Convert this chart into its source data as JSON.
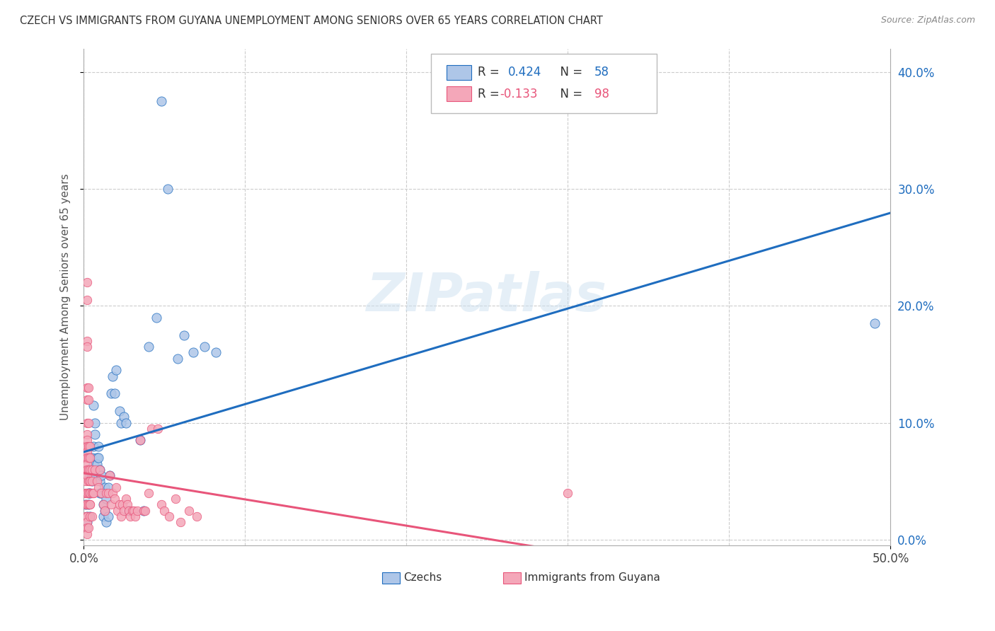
{
  "title": "CZECH VS IMMIGRANTS FROM GUYANA UNEMPLOYMENT AMONG SENIORS OVER 65 YEARS CORRELATION CHART",
  "source": "Source: ZipAtlas.com",
  "ylabel": "Unemployment Among Seniors over 65 years",
  "xlim": [
    0.0,
    0.5
  ],
  "ylim": [
    -0.005,
    0.42
  ],
  "xticks": [
    0.0,
    0.5
  ],
  "xtick_labels": [
    "0.0%",
    "50.0%"
  ],
  "yticks": [
    0.0,
    0.1,
    0.2,
    0.3,
    0.4
  ],
  "ytick_labels_right": [
    "0.0%",
    "10.0%",
    "20.0%",
    "30.0%",
    "40.0%"
  ],
  "grid_xticks": [
    0.0,
    0.1,
    0.2,
    0.3,
    0.4,
    0.5
  ],
  "watermark": "ZIPatlas",
  "czech_color": "#aec6e8",
  "guyana_color": "#f4a7b9",
  "czech_line_color": "#1f6dbf",
  "guyana_line_color": "#e8557a",
  "R_czech": 0.424,
  "N_czech": 58,
  "R_guyana": -0.133,
  "N_guyana": 98,
  "czech_points": [
    [
      0.001,
      0.03
    ],
    [
      0.002,
      0.02
    ],
    [
      0.002,
      0.015
    ],
    [
      0.003,
      0.04
    ],
    [
      0.003,
      0.06
    ],
    [
      0.003,
      0.03
    ],
    [
      0.004,
      0.02
    ],
    [
      0.004,
      0.055
    ],
    [
      0.004,
      0.04
    ],
    [
      0.004,
      0.07
    ],
    [
      0.005,
      0.05
    ],
    [
      0.005,
      0.06
    ],
    [
      0.005,
      0.055
    ],
    [
      0.005,
      0.07
    ],
    [
      0.006,
      0.065
    ],
    [
      0.006,
      0.08
    ],
    [
      0.006,
      0.115
    ],
    [
      0.007,
      0.1
    ],
    [
      0.007,
      0.09
    ],
    [
      0.008,
      0.07
    ],
    [
      0.008,
      0.065
    ],
    [
      0.009,
      0.07
    ],
    [
      0.009,
      0.08
    ],
    [
      0.01,
      0.06
    ],
    [
      0.01,
      0.05
    ],
    [
      0.01,
      0.04
    ],
    [
      0.011,
      0.055
    ],
    [
      0.011,
      0.04
    ],
    [
      0.012,
      0.02
    ],
    [
      0.012,
      0.03
    ],
    [
      0.013,
      0.045
    ],
    [
      0.013,
      0.025
    ],
    [
      0.014,
      0.035
    ],
    [
      0.014,
      0.015
    ],
    [
      0.015,
      0.02
    ],
    [
      0.015,
      0.045
    ],
    [
      0.016,
      0.055
    ],
    [
      0.017,
      0.125
    ],
    [
      0.018,
      0.14
    ],
    [
      0.019,
      0.125
    ],
    [
      0.02,
      0.145
    ],
    [
      0.022,
      0.11
    ],
    [
      0.023,
      0.1
    ],
    [
      0.025,
      0.105
    ],
    [
      0.026,
      0.1
    ],
    [
      0.028,
      0.025
    ],
    [
      0.035,
      0.085
    ],
    [
      0.037,
      0.025
    ],
    [
      0.04,
      0.165
    ],
    [
      0.045,
      0.19
    ],
    [
      0.048,
      0.375
    ],
    [
      0.052,
      0.3
    ],
    [
      0.058,
      0.155
    ],
    [
      0.062,
      0.175
    ],
    [
      0.068,
      0.16
    ],
    [
      0.075,
      0.165
    ],
    [
      0.082,
      0.16
    ],
    [
      0.49,
      0.185
    ]
  ],
  "guyana_points": [
    [
      0.001,
      0.06
    ],
    [
      0.001,
      0.04
    ],
    [
      0.001,
      0.02
    ],
    [
      0.001,
      0.07
    ],
    [
      0.001,
      0.06
    ],
    [
      0.001,
      0.05
    ],
    [
      0.001,
      0.04
    ],
    [
      0.001,
      0.03
    ],
    [
      0.001,
      0.08
    ],
    [
      0.002,
      0.22
    ],
    [
      0.002,
      0.205
    ],
    [
      0.002,
      0.17
    ],
    [
      0.002,
      0.165
    ],
    [
      0.002,
      0.13
    ],
    [
      0.002,
      0.12
    ],
    [
      0.002,
      0.1
    ],
    [
      0.002,
      0.09
    ],
    [
      0.002,
      0.085
    ],
    [
      0.002,
      0.08
    ],
    [
      0.002,
      0.075
    ],
    [
      0.002,
      0.07
    ],
    [
      0.002,
      0.065
    ],
    [
      0.002,
      0.06
    ],
    [
      0.002,
      0.055
    ],
    [
      0.002,
      0.04
    ],
    [
      0.002,
      0.03
    ],
    [
      0.002,
      0.02
    ],
    [
      0.002,
      0.015
    ],
    [
      0.002,
      0.01
    ],
    [
      0.002,
      0.005
    ],
    [
      0.003,
      0.13
    ],
    [
      0.003,
      0.12
    ],
    [
      0.003,
      0.1
    ],
    [
      0.003,
      0.08
    ],
    [
      0.003,
      0.07
    ],
    [
      0.003,
      0.06
    ],
    [
      0.003,
      0.05
    ],
    [
      0.003,
      0.04
    ],
    [
      0.003,
      0.03
    ],
    [
      0.003,
      0.01
    ],
    [
      0.004,
      0.08
    ],
    [
      0.004,
      0.06
    ],
    [
      0.004,
      0.05
    ],
    [
      0.004,
      0.04
    ],
    [
      0.004,
      0.03
    ],
    [
      0.004,
      0.07
    ],
    [
      0.004,
      0.05
    ],
    [
      0.004,
      0.04
    ],
    [
      0.004,
      0.03
    ],
    [
      0.004,
      0.02
    ],
    [
      0.005,
      0.06
    ],
    [
      0.005,
      0.04
    ],
    [
      0.005,
      0.02
    ],
    [
      0.005,
      0.05
    ],
    [
      0.005,
      0.04
    ],
    [
      0.006,
      0.04
    ],
    [
      0.006,
      0.04
    ],
    [
      0.007,
      0.06
    ],
    [
      0.008,
      0.05
    ],
    [
      0.009,
      0.045
    ],
    [
      0.01,
      0.06
    ],
    [
      0.011,
      0.04
    ],
    [
      0.012,
      0.03
    ],
    [
      0.013,
      0.025
    ],
    [
      0.014,
      0.04
    ],
    [
      0.015,
      0.04
    ],
    [
      0.016,
      0.055
    ],
    [
      0.017,
      0.03
    ],
    [
      0.018,
      0.04
    ],
    [
      0.019,
      0.035
    ],
    [
      0.02,
      0.045
    ],
    [
      0.021,
      0.025
    ],
    [
      0.022,
      0.03
    ],
    [
      0.023,
      0.02
    ],
    [
      0.024,
      0.03
    ],
    [
      0.025,
      0.025
    ],
    [
      0.026,
      0.035
    ],
    [
      0.027,
      0.03
    ],
    [
      0.028,
      0.025
    ],
    [
      0.029,
      0.02
    ],
    [
      0.03,
      0.025
    ],
    [
      0.031,
      0.025
    ],
    [
      0.032,
      0.02
    ],
    [
      0.033,
      0.025
    ],
    [
      0.035,
      0.085
    ],
    [
      0.037,
      0.025
    ],
    [
      0.038,
      0.025
    ],
    [
      0.04,
      0.04
    ],
    [
      0.042,
      0.095
    ],
    [
      0.046,
      0.095
    ],
    [
      0.048,
      0.03
    ],
    [
      0.05,
      0.025
    ],
    [
      0.053,
      0.02
    ],
    [
      0.057,
      0.035
    ],
    [
      0.06,
      0.015
    ],
    [
      0.065,
      0.025
    ],
    [
      0.07,
      0.02
    ],
    [
      0.3,
      0.04
    ]
  ]
}
